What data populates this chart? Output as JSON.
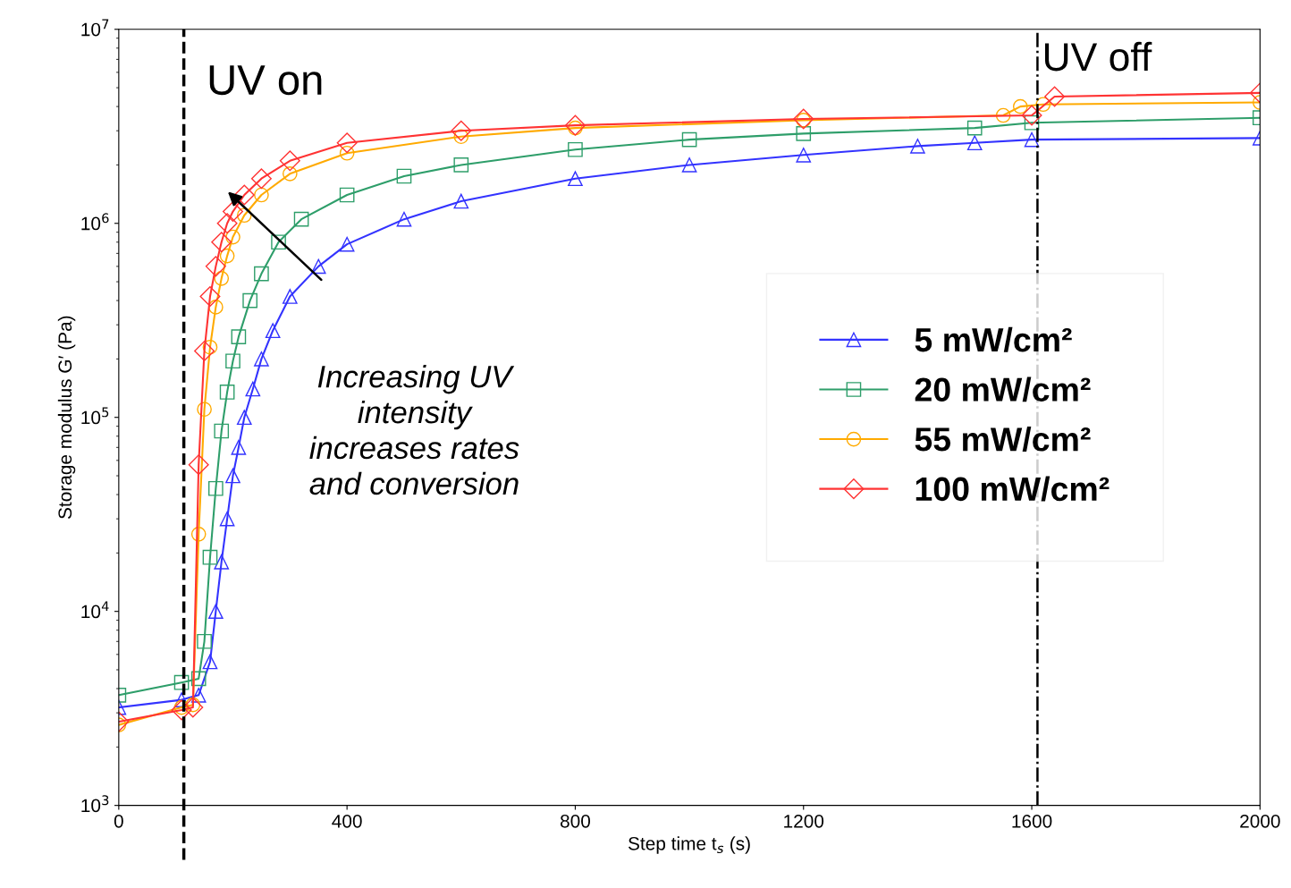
{
  "chart_data": {
    "type": "line",
    "xlabel": "Step time t$_{s}$ (s)",
    "ylabel": "Storage modulus G′ (Pa)",
    "log": "y",
    "xlim": [
      0,
      2000
    ],
    "ylim": [
      1000,
      10000000
    ],
    "xticks": [
      0,
      400,
      800,
      1200,
      1600,
      2000
    ],
    "yticks": [
      {
        "value": 1000,
        "label": "10$^{3}$"
      },
      {
        "value": 10000,
        "label": "10$^{4}$"
      },
      {
        "value": 100000,
        "label": "10$^{5}$"
      },
      {
        "value": 1000000,
        "label": "10$^{6}$"
      },
      {
        "value": 10000000,
        "label": "10$^{7}$"
      }
    ],
    "grid": false,
    "legend": "center right",
    "line_style": "solid",
    "series": [
      {
        "name": "5 mW/cm²",
        "color": "#3333ff",
        "marker": "triangle",
        "x": [
          0,
          110,
          140,
          160,
          170,
          180,
          190,
          200,
          210,
          220,
          235,
          250,
          270,
          300,
          350,
          400,
          500,
          600,
          800,
          1000,
          1200,
          1400,
          1500,
          1600,
          2000
        ],
        "values": [
          3200,
          3500,
          3700,
          5500,
          10000,
          18000,
          30000,
          50000,
          70000,
          100000,
          140000,
          200000,
          280000,
          420000,
          600000,
          780000,
          1050000,
          1300000,
          1700000,
          2000000,
          2250000,
          2500000,
          2600000,
          2700000,
          2750000
        ]
      },
      {
        "name": "20 mW/cm²",
        "color": "#2e9e6a",
        "marker": "square",
        "x": [
          0,
          110,
          140,
          150,
          160,
          170,
          180,
          190,
          200,
          210,
          230,
          250,
          280,
          320,
          400,
          500,
          600,
          800,
          1000,
          1200,
          1500,
          1600,
          2000
        ],
        "values": [
          3700,
          4300,
          4500,
          7000,
          19000,
          43000,
          85000,
          135000,
          195000,
          260000,
          400000,
          550000,
          800000,
          1050000,
          1400000,
          1750000,
          2000000,
          2400000,
          2700000,
          2900000,
          3100000,
          3300000,
          3500000
        ]
      },
      {
        "name": "55 mW/cm²",
        "color": "#ffaa00",
        "marker": "circle",
        "x": [
          0,
          110,
          130,
          140,
          150,
          160,
          170,
          180,
          190,
          200,
          220,
          250,
          300,
          400,
          600,
          800,
          1200,
          1550,
          1580,
          1620,
          2000
        ],
        "values": [
          2600,
          3200,
          3300,
          25000,
          110000,
          230000,
          370000,
          520000,
          680000,
          850000,
          1100000,
          1400000,
          1800000,
          2300000,
          2800000,
          3100000,
          3400000,
          3600000,
          4000000,
          4100000,
          4200000
        ]
      },
      {
        "name": "100 mW/cm²",
        "color": "#ff3333",
        "marker": "diamond",
        "x": [
          0,
          110,
          130,
          140,
          150,
          160,
          170,
          180,
          190,
          200,
          220,
          250,
          300,
          400,
          600,
          800,
          1200,
          1600,
          1640,
          2000
        ],
        "values": [
          2700,
          3100,
          3200,
          57000,
          220000,
          420000,
          600000,
          800000,
          1000000,
          1150000,
          1400000,
          1700000,
          2100000,
          2600000,
          3000000,
          3200000,
          3450000,
          3600000,
          4500000,
          4700000
        ]
      }
    ],
    "ref_lines": [
      {
        "axis": "x",
        "value": 114,
        "label": "UV on",
        "color": "#000000",
        "line_style": "dashed"
      },
      {
        "axis": "x",
        "value": 1610,
        "label": "UV off",
        "color": "#000000",
        "line_style": "dashdot"
      }
    ],
    "annotations": [
      "Increasing UV\nintensity\nincreases rates\nand conversion"
    ]
  }
}
